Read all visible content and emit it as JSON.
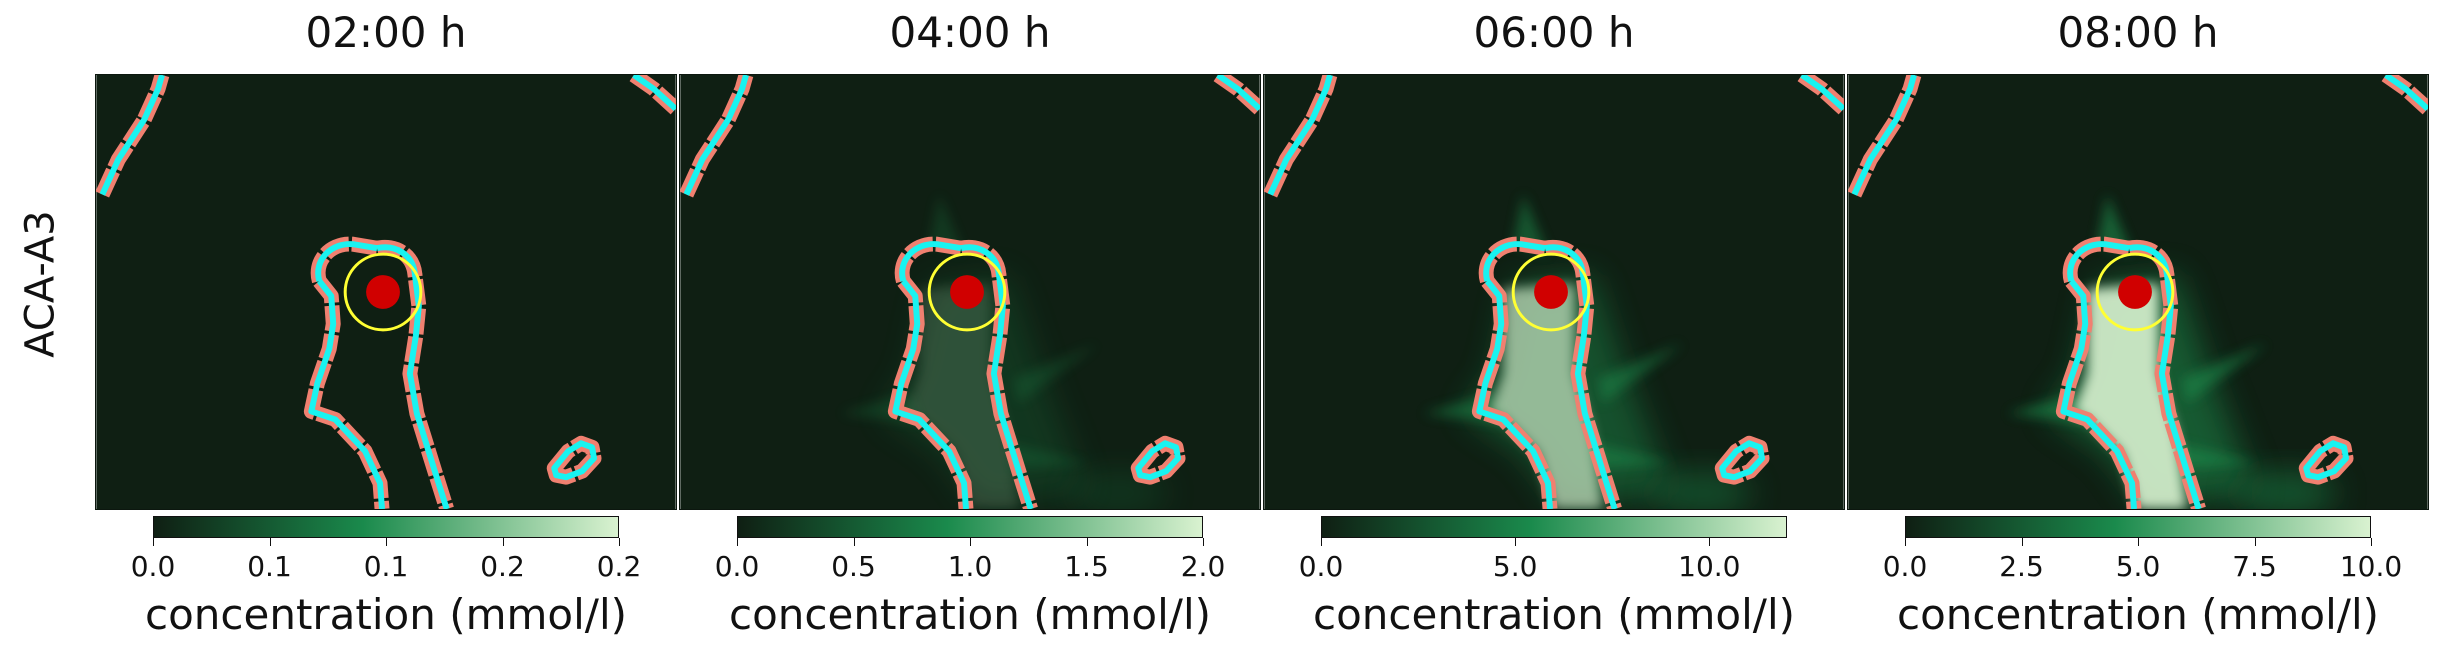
{
  "row_label": "ACA-A3",
  "colors": {
    "background": "#0f1f13",
    "outer_contour": "#f08070",
    "inner_contour": "#19f3f0",
    "marker_fill": "#d00000",
    "marker_ring": "#ffff33",
    "cmap_low": "#0f1f13",
    "cmap_mid": "#1a8a4c",
    "cmap_high": "#d9f2d0"
  },
  "chart_data": [
    {
      "type": "heatmap",
      "title": "02:00 h",
      "colorbar": {
        "label": "concentration (mmol/l)",
        "ticks": [
          0.0,
          0.05,
          0.1,
          0.15,
          0.2
        ],
        "tick_labels": [
          "0.0",
          "0.1",
          "0.1",
          "0.2",
          "0.2"
        ],
        "range": [
          0,
          0.2
        ]
      },
      "plume_intensity": 0.0
    },
    {
      "type": "heatmap",
      "title": "04:00 h",
      "colorbar": {
        "label": "concentration (mmol/l)",
        "ticks": [
          0.0,
          0.5,
          1.0,
          1.5,
          2.0
        ],
        "tick_labels": [
          "0.0",
          "0.5",
          "1.0",
          "1.5",
          "2.0"
        ],
        "range": [
          0,
          2.0
        ]
      },
      "plume_intensity": 0.4
    },
    {
      "type": "heatmap",
      "title": "06:00 h",
      "colorbar": {
        "label": "concentration (mmol/l)",
        "ticks": [
          0.0,
          5.0,
          10.0
        ],
        "tick_labels": [
          "0.0",
          "5.0",
          "10.0"
        ],
        "range": [
          0,
          12.0
        ]
      },
      "plume_intensity": 0.85
    },
    {
      "type": "heatmap",
      "title": "08:00 h",
      "colorbar": {
        "label": "concentration (mmol/l)",
        "ticks": [
          0.0,
          2.5,
          5.0,
          7.5,
          10.0
        ],
        "tick_labels": [
          "0.0",
          "2.5",
          "5.0",
          "7.5",
          "10.0"
        ],
        "range": [
          0,
          10.0
        ]
      },
      "plume_intensity": 1.0
    }
  ]
}
